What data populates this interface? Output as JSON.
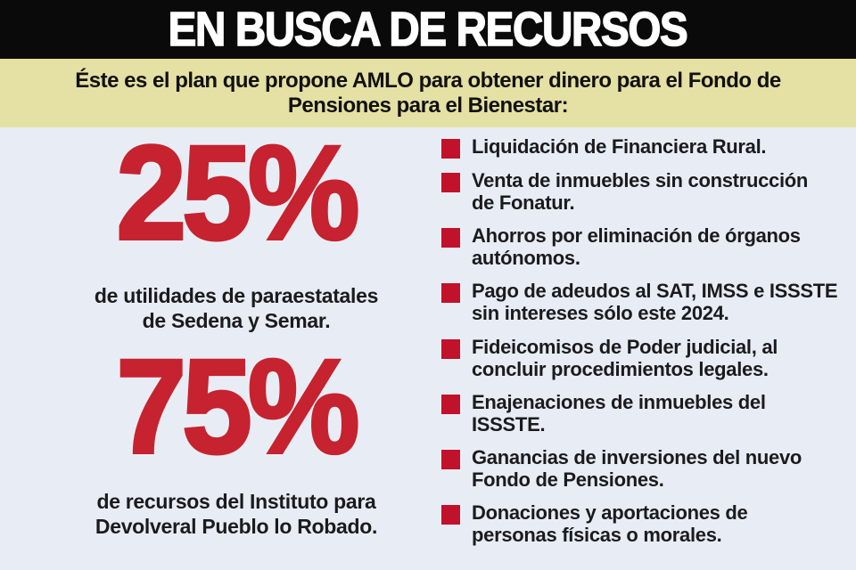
{
  "header": {
    "title": "EN BUSCA DE RECURSOS"
  },
  "subtitle": {
    "text": "Éste es el plan que propone AMLO para obtener dinero para el Fondo de\nPensiones para el Bienestar:"
  },
  "stats": [
    {
      "value": "25%",
      "caption": "de utilidades de paraestatales\nde Sedena y Semar."
    },
    {
      "value": "75%",
      "caption": "de recursos del Instituto para\nDevolveral Pueblo lo Robado."
    }
  ],
  "list": {
    "groups": [
      {
        "items": [
          "Liquidación de Financiera Rural.",
          "Venta de inmuebles sin construcción\nde Fonatur.",
          "Ahorros por eliminación de órganos\nautónomos.",
          "Pago de adeudos al SAT, IMSS e ISSSTE\nsin intereses sólo este 2024."
        ]
      },
      {
        "items": [
          "Fideicomisos de Poder judicial, al\nconcluir procedimientos legales.",
          "Enajenaciones de inmuebles del\nISSSTE.",
          "Ganancias de inversiones del nuevo\nFondo de Pensiones.",
          "Donaciones y aportaciones de\npersonas físicas o morales."
        ]
      }
    ]
  },
  "icons": {
    "bullet": "red-square-icon"
  },
  "colors": {
    "header_bg": "#0a0a0a",
    "title_text": "#ffffff",
    "subtitle_bg": "#e5e0a3",
    "subtitle_text": "#111111",
    "body_bg": "#e8edf5",
    "red_number": "#c6222f",
    "red_bullet": "#c2112a",
    "body_text": "#1b1b1e"
  }
}
